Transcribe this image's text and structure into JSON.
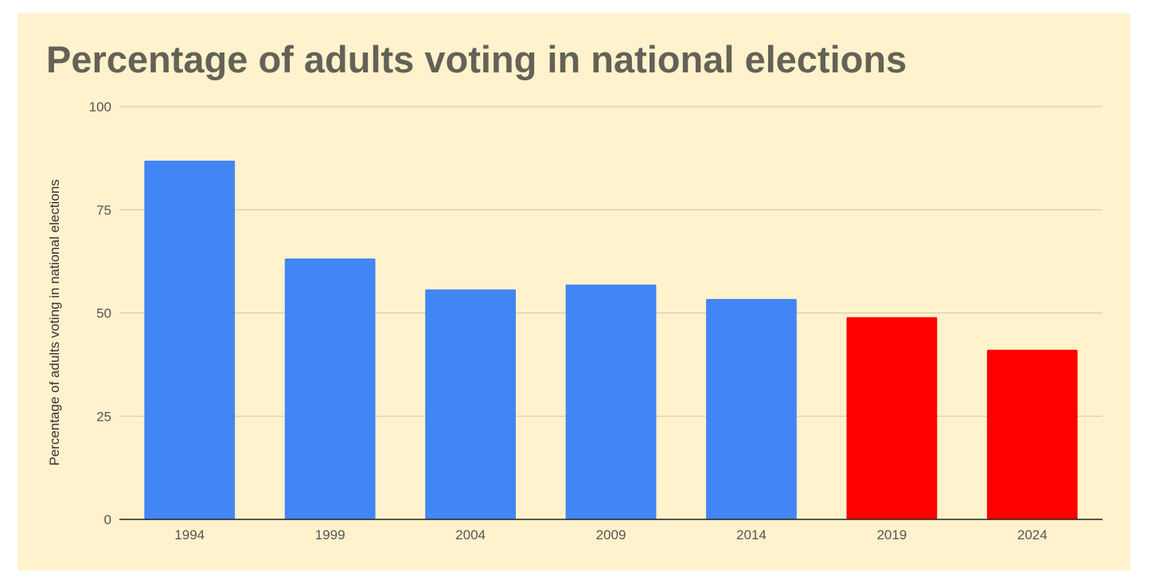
{
  "chart_data": {
    "type": "bar",
    "title": "Percentage of adults voting in national elections",
    "xlabel": "",
    "ylabel": "Percentage of adults voting in national elections",
    "categories": [
      "1994",
      "1999",
      "2004",
      "2009",
      "2014",
      "2019",
      "2024"
    ],
    "values": [
      86.9,
      63.2,
      55.7,
      56.9,
      53.4,
      49.0,
      41.1
    ],
    "bar_colors": [
      "#4285f4",
      "#4285f4",
      "#4285f4",
      "#4285f4",
      "#4285f4",
      "#ff0000",
      "#ff0000"
    ],
    "ylim": [
      0,
      100
    ],
    "yticks": [
      0,
      25,
      50,
      75,
      100
    ],
    "grid": true,
    "legend": "none"
  },
  "colors": {
    "background": "#fff2cc",
    "title": "#646257",
    "gridline": "#cfc8a8",
    "axis": "#222222"
  }
}
